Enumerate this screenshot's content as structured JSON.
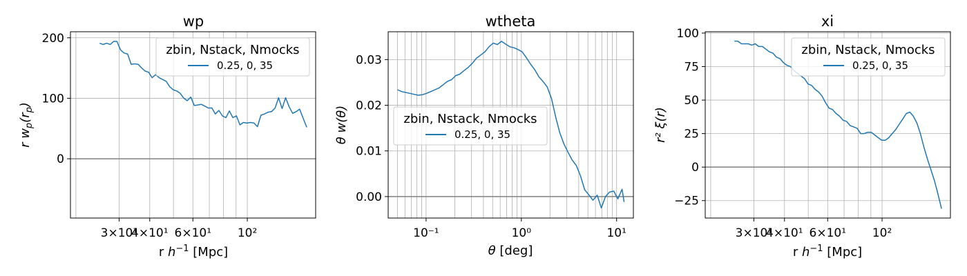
{
  "chart_data": [
    {
      "type": "line",
      "title": "wp",
      "xlabel_text": "r ",
      "xlabel_var": "h",
      "xlabel_sup": "−1",
      "xlabel_unit": " [Mpc]",
      "ylabel": "r w_p(r_p)",
      "xscale": "log",
      "xlim": [
        19,
        190
      ],
      "ylim": [
        -98,
        210
      ],
      "xtick_labels": [
        "3×10¹",
        "4×10¹",
        "6×10¹",
        "10²"
      ],
      "yticks": [
        0,
        100,
        200
      ],
      "ytick_labels": [
        "0",
        "100",
        "200"
      ],
      "grid": true,
      "legend": {
        "title": "zbin, Nstack, Nmocks",
        "entries": [
          "0.25, 0, 35"
        ],
        "placement": "top-right"
      },
      "series": [
        {
          "name": "0.25, 0, 35",
          "color": "#1f77b4",
          "x": [
            25.0,
            25.8,
            26.7,
            27.6,
            28.5,
            29.4,
            30.4,
            31.4,
            32.5,
            33.6,
            34.7,
            35.9,
            37.1,
            38.3,
            39.6,
            40.9,
            42.3,
            43.7,
            45.2,
            46.7,
            48.3,
            49.9,
            51.6,
            53.3,
            55.1,
            56.9,
            58.8,
            60.8,
            62.8,
            64.9,
            67.1,
            69.3,
            71.7,
            74.1,
            76.6,
            79.1,
            81.8,
            84.5,
            87.3,
            90.3,
            93.3,
            96.4,
            99.7,
            103.0,
            106.5,
            110.0,
            113.7,
            117.5,
            121.5,
            125.6,
            129.8,
            134.1,
            138.6,
            143.3,
            148.1,
            153.1,
            158.2,
            163.5,
            169.0,
            174.7
          ],
          "y": [
            191,
            189,
            191,
            189,
            194,
            194,
            180,
            175,
            173,
            156,
            157,
            156,
            150,
            145,
            143,
            134,
            139,
            134,
            131,
            128,
            119,
            114,
            112,
            108,
            100,
            96,
            102,
            88,
            89,
            90,
            87,
            84,
            84,
            74,
            80,
            71,
            68,
            79,
            68,
            71,
            56,
            60,
            59,
            60,
            59,
            53,
            72,
            74,
            77,
            78,
            84,
            101,
            83,
            101,
            86,
            75,
            78,
            82,
            67,
            52
          ]
        }
      ]
    },
    {
      "type": "line",
      "title": "wtheta",
      "xlabel_text": "",
      "xlabel_var": "θ",
      "xlabel_sup": "",
      "xlabel_unit": " [deg]",
      "ylabel": "θ w(θ)",
      "xscale": "log",
      "xlim": [
        0.04,
        15
      ],
      "ylim": [
        -0.0047,
        0.0361
      ],
      "xticks": [
        0.1,
        1,
        10
      ],
      "xtick_labels": [
        "10⁻¹",
        "10⁰",
        "10¹"
      ],
      "yticks": [
        0.0,
        0.01,
        0.02,
        0.03
      ],
      "ytick_labels": [
        "0.00",
        "0.01",
        "0.02",
        "0.03"
      ],
      "grid": true,
      "legend": {
        "title": "zbin, Nstack, Nmocks",
        "entries": [
          "0.25, 0, 35"
        ],
        "placement": "center-left"
      },
      "series": [
        {
          "name": "0.25, 0, 35",
          "color": "#1f77b4",
          "x": [
            0.05,
            0.0553,
            0.0611,
            0.0676,
            0.0748,
            0.0827,
            0.0914,
            0.101,
            0.112,
            0.124,
            0.137,
            0.151,
            0.167,
            0.185,
            0.205,
            0.226,
            0.25,
            0.277,
            0.306,
            0.338,
            0.374,
            0.414,
            0.458,
            0.506,
            0.56,
            0.619,
            0.684,
            0.757,
            0.837,
            0.925,
            1.02,
            1.13,
            1.25,
            1.38,
            1.53,
            1.69,
            1.87,
            2.07,
            2.29,
            2.53,
            2.8,
            3.09,
            3.42,
            3.78,
            4.18,
            4.62,
            5.11,
            5.65,
            6.25,
            6.91,
            7.64,
            8.45,
            9.34,
            10.3,
            11.4,
            12.0
          ],
          "y": [
            0.0234,
            0.023,
            0.0228,
            0.0226,
            0.0224,
            0.0222,
            0.0223,
            0.0226,
            0.023,
            0.0234,
            0.0238,
            0.0245,
            0.0252,
            0.0256,
            0.0265,
            0.0268,
            0.0276,
            0.0283,
            0.0292,
            0.0303,
            0.031,
            0.0317,
            0.0328,
            0.0336,
            0.0333,
            0.034,
            0.0334,
            0.0328,
            0.0326,
            0.0322,
            0.0317,
            0.0304,
            0.029,
            0.0278,
            0.0262,
            0.0252,
            0.024,
            0.0215,
            0.0175,
            0.014,
            0.0115,
            0.0097,
            0.008,
            0.0068,
            0.0045,
            0.0015,
            0.0004,
            -0.0008,
            0.0003,
            -0.0025,
            0.0,
            0.001,
            0.0012,
            -0.0005,
            0.0016,
            -0.0012
          ]
        }
      ]
    },
    {
      "type": "line",
      "title": "xi",
      "xlabel_text": "r ",
      "xlabel_var": "h",
      "xlabel_sup": "−1",
      "xlabel_unit": " [Mpc]",
      "ylabel": "r² ξ(r)",
      "xscale": "log",
      "xlim": [
        19,
        190
      ],
      "ylim": [
        -38,
        101
      ],
      "xtick_labels": [
        "3×10¹",
        "4×10¹",
        "6×10¹",
        "10²"
      ],
      "yticks": [
        -25,
        0,
        25,
        50,
        75,
        100
      ],
      "ytick_labels": [
        "−25",
        "0",
        "25",
        "50",
        "75",
        "100"
      ],
      "grid": true,
      "legend": {
        "title": "zbin, Nstack, Nmocks",
        "entries": [
          "0.25, 0, 35"
        ],
        "placement": "top-right"
      },
      "series": [
        {
          "name": "0.25, 0, 35",
          "color": "#1f77b4",
          "x": [
            25.0,
            25.8,
            26.7,
            27.6,
            28.5,
            29.4,
            30.4,
            31.4,
            32.5,
            33.6,
            34.7,
            35.9,
            37.1,
            38.3,
            39.6,
            40.9,
            42.3,
            43.7,
            45.2,
            46.7,
            48.3,
            49.9,
            51.6,
            53.3,
            55.1,
            56.9,
            58.8,
            60.8,
            62.8,
            64.9,
            67.1,
            69.3,
            71.7,
            74.1,
            76.6,
            79.1,
            81.8,
            84.5,
            87.3,
            90.3,
            93.3,
            96.4,
            99.7,
            103.0,
            106.5,
            110.0,
            113.7,
            117.5,
            121.5,
            125.6,
            129.8,
            134.1,
            138.6,
            143.3,
            148.1,
            153.1,
            158.2,
            163.5,
            169.0,
            174.7
          ],
          "y": [
            94,
            94,
            92,
            92,
            92,
            91,
            92,
            90,
            90,
            88,
            86,
            85,
            82,
            81,
            78,
            76,
            75,
            72,
            70,
            68,
            66,
            62,
            61,
            58,
            56,
            53,
            48,
            44,
            43,
            40,
            38,
            35,
            34,
            31,
            30,
            29,
            25,
            25,
            26,
            26,
            24,
            22,
            20,
            20,
            22,
            25,
            28,
            32,
            36,
            40,
            41,
            38,
            33,
            25,
            15,
            6,
            -2,
            -10,
            -20,
            -31
          ]
        }
      ]
    }
  ]
}
